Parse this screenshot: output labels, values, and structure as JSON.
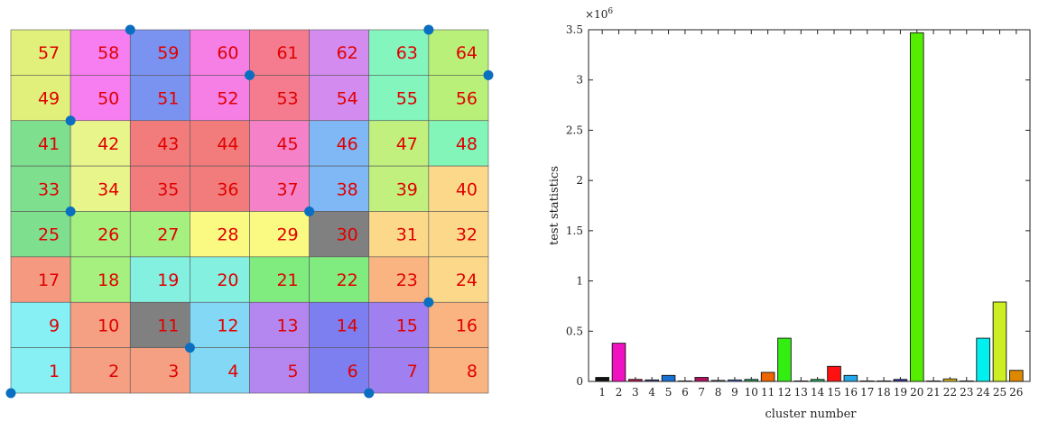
{
  "grid": {
    "rows": 8,
    "cols": 8,
    "cells": [
      {
        "n": "57",
        "color": "#e0f07a"
      },
      {
        "n": "58",
        "color": "#f77ef0"
      },
      {
        "n": "59",
        "color": "#7b93f0"
      },
      {
        "n": "60",
        "color": "#f57fe4"
      },
      {
        "n": "61",
        "color": "#f57c8f"
      },
      {
        "n": "62",
        "color": "#d38bf0"
      },
      {
        "n": "63",
        "color": "#83f5bd"
      },
      {
        "n": "64",
        "color": "#b8f07a"
      },
      {
        "n": "49",
        "color": "#e0f07a"
      },
      {
        "n": "50",
        "color": "#f77ef0"
      },
      {
        "n": "51",
        "color": "#7b93f0"
      },
      {
        "n": "52",
        "color": "#f57fe4"
      },
      {
        "n": "53",
        "color": "#f57c8f"
      },
      {
        "n": "54",
        "color": "#d38bf0"
      },
      {
        "n": "55",
        "color": "#83f5bd"
      },
      {
        "n": "56",
        "color": "#b8f07a"
      },
      {
        "n": "41",
        "color": "#7ee08f"
      },
      {
        "n": "42",
        "color": "#e8f58a"
      },
      {
        "n": "43",
        "color": "#f27c7c"
      },
      {
        "n": "44",
        "color": "#f27c7c"
      },
      {
        "n": "45",
        "color": "#f582c8"
      },
      {
        "n": "46",
        "color": "#80b8f5"
      },
      {
        "n": "47",
        "color": "#c2f07e"
      },
      {
        "n": "48",
        "color": "#83f5b8"
      },
      {
        "n": "33",
        "color": "#7ee08f"
      },
      {
        "n": "34",
        "color": "#e8f58a"
      },
      {
        "n": "35",
        "color": "#f27c7c"
      },
      {
        "n": "36",
        "color": "#f27c7c"
      },
      {
        "n": "37",
        "color": "#f582c8"
      },
      {
        "n": "38",
        "color": "#80b8f5"
      },
      {
        "n": "39",
        "color": "#c2f07e"
      },
      {
        "n": "40",
        "color": "#fcd98a"
      },
      {
        "n": "25",
        "color": "#7ee08f"
      },
      {
        "n": "26",
        "color": "#a5f07e"
      },
      {
        "n": "27",
        "color": "#a5f07e"
      },
      {
        "n": "28",
        "color": "#fafa82"
      },
      {
        "n": "29",
        "color": "#fafa82"
      },
      {
        "n": "30",
        "color": "#808080"
      },
      {
        "n": "31",
        "color": "#fcd98a"
      },
      {
        "n": "32",
        "color": "#fcd98a"
      },
      {
        "n": "17",
        "color": "#f59a80"
      },
      {
        "n": "18",
        "color": "#a5f07e"
      },
      {
        "n": "19",
        "color": "#83f0e0"
      },
      {
        "n": "20",
        "color": "#83f0e0"
      },
      {
        "n": "21",
        "color": "#80ec80"
      },
      {
        "n": "22",
        "color": "#80ec80"
      },
      {
        "n": "23",
        "color": "#fab482"
      },
      {
        "n": "24",
        "color": "#fcd98a"
      },
      {
        "n": "9",
        "color": "#86f0f5"
      },
      {
        "n": "10",
        "color": "#f5a082"
      },
      {
        "n": "11",
        "color": "#808080"
      },
      {
        "n": "12",
        "color": "#83d8f5"
      },
      {
        "n": "13",
        "color": "#b486f0"
      },
      {
        "n": "14",
        "color": "#7d7ff0"
      },
      {
        "n": "15",
        "color": "#a080f0"
      },
      {
        "n": "16",
        "color": "#fab482"
      },
      {
        "n": "1",
        "color": "#86f0f5"
      },
      {
        "n": "2",
        "color": "#f5a082"
      },
      {
        "n": "3",
        "color": "#f5a082"
      },
      {
        "n": "4",
        "color": "#83d8f5"
      },
      {
        "n": "5",
        "color": "#b486f0"
      },
      {
        "n": "6",
        "color": "#7d7ff0"
      },
      {
        "n": "7",
        "color": "#a080f0"
      },
      {
        "n": "8",
        "color": "#fab482"
      }
    ],
    "dots": [
      [
        2,
        0
      ],
      [
        7,
        0
      ],
      [
        4,
        1
      ],
      [
        8,
        1
      ],
      [
        1,
        2
      ],
      [
        5,
        4
      ],
      [
        1,
        4
      ],
      [
        7,
        6
      ],
      [
        3,
        7
      ],
      [
        0,
        8
      ],
      [
        6,
        8
      ]
    ],
    "dot_color": "#0a6fc0",
    "text_color": "#e00000"
  },
  "chart_data": {
    "type": "bar",
    "categories": [
      "1",
      "2",
      "3",
      "4",
      "5",
      "6",
      "7",
      "8",
      "9",
      "10",
      "11",
      "12",
      "13",
      "14",
      "15",
      "16",
      "17",
      "18",
      "19",
      "20",
      "21",
      "22",
      "23",
      "24",
      "25",
      "26"
    ],
    "values": [
      0.04,
      0.38,
      0.02,
      0.015,
      0.06,
      0.005,
      0.04,
      0.01,
      0.015,
      0.02,
      0.09,
      0.43,
      0.005,
      0.02,
      0.15,
      0.06,
      0.005,
      0.005,
      0.02,
      3.47,
      0.005,
      0.025,
      0.005,
      0.43,
      0.79,
      0.11
    ],
    "colors": [
      "#111111",
      "#f012c0",
      "#c81450",
      "#4e4ea6",
      "#1a70d0",
      "#dd2222",
      "#b01060",
      "#7799cc",
      "#4f7fff",
      "#20a060",
      "#ee6600",
      "#33ee11",
      "#aaaaaa",
      "#22bb66",
      "#ff1111",
      "#22a8e8",
      "#555555",
      "#cc88ff",
      "#3333aa",
      "#55ee00",
      "#226622",
      "#ddbb22",
      "#dddddd",
      "#00f0f0",
      "#ccee22",
      "#dd8800"
    ],
    "xlabel": "cluster number",
    "ylabel": "test statistics",
    "ylim": [
      0,
      3.5
    ],
    "yticks": [
      "0",
      "0.5",
      "1",
      "1.5",
      "2",
      "2.5",
      "3",
      "3.5"
    ],
    "ytick_values": [
      0,
      0.5,
      1,
      1.5,
      2,
      2.5,
      3,
      3.5
    ],
    "exponent_label": "×10",
    "exponent_power": "6"
  }
}
